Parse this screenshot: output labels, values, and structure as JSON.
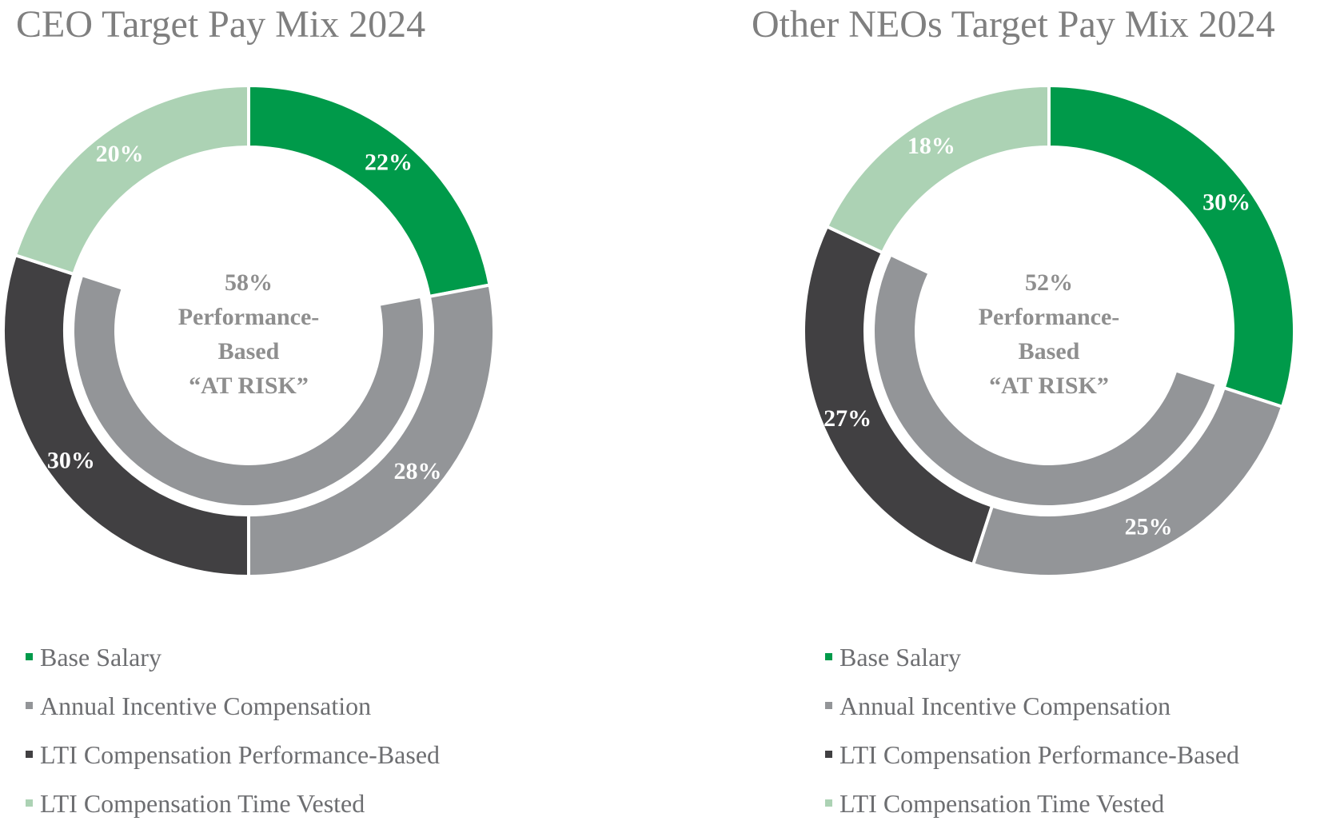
{
  "colors": {
    "Base Salary": "#009a4a",
    "Annual Incentive Compensation": "#939598",
    "LTI Compensation Performance-Based": "#414042",
    "LTI Compensation Time Vested": "#acd2b4"
  },
  "chart_data": [
    {
      "type": "pie",
      "variant": "donut",
      "title": "CEO Target Pay Mix 2024",
      "categories": [
        "Base Salary",
        "Annual Incentive Compensation",
        "LTI Compensation Performance-Based",
        "LTI Compensation Time Vested"
      ],
      "values": [
        22,
        28,
        30,
        20
      ],
      "labels": [
        "22%",
        "28%",
        "30%",
        "20%"
      ],
      "inner_ring": {
        "value": 58,
        "center_text": [
          "58%",
          "Performance-",
          "Based",
          "“AT RISK”"
        ]
      },
      "legend": [
        "Base Salary",
        "Annual Incentive Compensation",
        "LTI Compensation Performance-Based",
        "LTI Compensation Time Vested"
      ],
      "legend_position": "bottom"
    },
    {
      "type": "pie",
      "variant": "donut",
      "title": "Other NEOs Target Pay Mix 2024",
      "categories": [
        "Base Salary",
        "Annual Incentive Compensation",
        "LTI Compensation Performance-Based",
        "LTI Compensation Time Vested"
      ],
      "values": [
        30,
        25,
        27,
        18
      ],
      "labels": [
        "30%",
        "25%",
        "27%",
        "18%"
      ],
      "inner_ring": {
        "value": 52,
        "center_text": [
          "52%",
          "Performance-",
          "Based",
          "“AT RISK”"
        ]
      },
      "legend": [
        "Base Salary",
        "Annual Incentive Compensation",
        "LTI Compensation Performance-Based",
        "LTI Compensation Time Vested"
      ],
      "legend_position": "bottom"
    }
  ]
}
